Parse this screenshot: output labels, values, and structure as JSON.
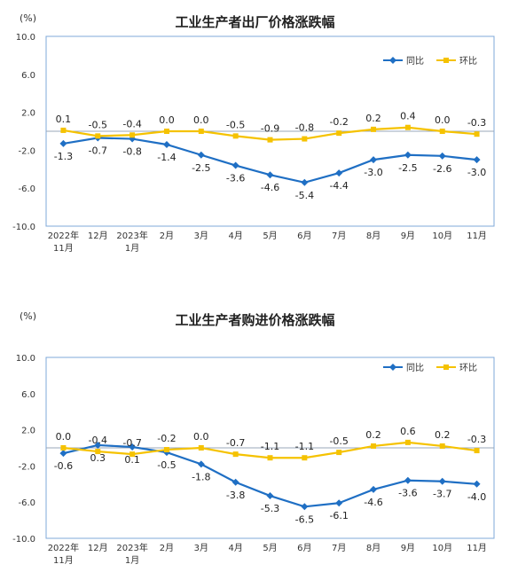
{
  "colors": {
    "yoy": "#1f6fc4",
    "mom": "#f5c200",
    "frame": "#7fa8d8",
    "zero": "#9aa7b8"
  },
  "charts": [
    {
      "title": "工业生产者出厂价格涨跌幅",
      "unit": "(%)"
    },
    {
      "title": "工业生产者购进价格涨跌幅",
      "unit": "(%)"
    }
  ],
  "chart_data": [
    {
      "type": "line",
      "title": "工业生产者出厂价格涨跌幅",
      "ylabel": "(%)",
      "ylim": [
        -10.0,
        10.0
      ],
      "yticks": [
        "10.0",
        "6.0",
        "2.0",
        "-2.0",
        "-6.0",
        "-10.0"
      ],
      "categories": [
        [
          "2022年",
          "11月"
        ],
        [
          "12月"
        ],
        [
          "2023年",
          "1月"
        ],
        [
          "2月"
        ],
        [
          "3月"
        ],
        [
          "4月"
        ],
        [
          "5月"
        ],
        [
          "6月"
        ],
        [
          "7月"
        ],
        [
          "8月"
        ],
        [
          "9月"
        ],
        [
          "10月"
        ],
        [
          "11月"
        ]
      ],
      "legend": "top-right",
      "series": [
        {
          "name": "同比",
          "color": "#1f6fc4",
          "marker": "diamond",
          "values": [
            -1.3,
            -0.7,
            -0.8,
            -1.4,
            -2.5,
            -3.6,
            -4.6,
            -5.4,
            -4.4,
            -3.0,
            -2.5,
            -2.6,
            -3.0
          ],
          "labels": [
            "-1.3",
            "-0.7",
            "-0.8",
            "-1.4",
            "-2.5",
            "-3.6",
            "-4.6",
            "-5.4",
            "-4.4",
            "-3.0",
            "-2.5",
            "-2.6",
            "-3.0"
          ]
        },
        {
          "name": "环比",
          "color": "#f5c200",
          "marker": "square",
          "values": [
            0.1,
            -0.5,
            -0.4,
            0.0,
            0.0,
            -0.5,
            -0.9,
            -0.8,
            -0.2,
            0.2,
            0.4,
            0.0,
            -0.3
          ],
          "labels": [
            "0.1",
            "-0.5",
            "-0.4",
            "0.0",
            "0.0",
            "-0.5",
            "-0.9",
            "-0.8",
            "-0.2",
            "0.2",
            "0.4",
            "0.0",
            "-0.3"
          ]
        }
      ]
    },
    {
      "type": "line",
      "title": "工业生产者购进价格涨跌幅",
      "ylabel": "(%)",
      "ylim": [
        -10.0,
        10.0
      ],
      "yticks": [
        "10.0",
        "6.0",
        "2.0",
        "-2.0",
        "-6.0",
        "-10.0"
      ],
      "categories": [
        [
          "2022年",
          "11月"
        ],
        [
          "12月"
        ],
        [
          "2023年",
          "1月"
        ],
        [
          "2月"
        ],
        [
          "3月"
        ],
        [
          "4月"
        ],
        [
          "5月"
        ],
        [
          "6月"
        ],
        [
          "7月"
        ],
        [
          "8月"
        ],
        [
          "9月"
        ],
        [
          "10月"
        ],
        [
          "11月"
        ]
      ],
      "legend": "top-right",
      "series": [
        {
          "name": "同比",
          "color": "#1f6fc4",
          "marker": "diamond",
          "values": [
            -0.6,
            0.3,
            0.1,
            -0.5,
            -1.8,
            -3.8,
            -5.3,
            -6.5,
            -6.1,
            -4.6,
            -3.6,
            -3.7,
            -4.0
          ],
          "labels": [
            "-0.6",
            "0.3",
            "0.1",
            "-0.5",
            "-1.8",
            "-3.8",
            "-5.3",
            "-6.5",
            "-6.1",
            "-4.6",
            "-3.6",
            "-3.7",
            "-4.0"
          ]
        },
        {
          "name": "环比",
          "color": "#f5c200",
          "marker": "square",
          "values": [
            0.0,
            -0.4,
            -0.7,
            -0.2,
            0.0,
            -0.7,
            -1.1,
            -1.1,
            -0.5,
            0.2,
            0.6,
            0.2,
            -0.3
          ],
          "labels": [
            "0.0",
            "-0.4",
            "-0.7",
            "-0.2",
            "0.0",
            "-0.7",
            "-1.1",
            "-1.1",
            "-0.5",
            "0.2",
            "0.6",
            "0.2",
            "-0.3"
          ]
        }
      ]
    }
  ]
}
